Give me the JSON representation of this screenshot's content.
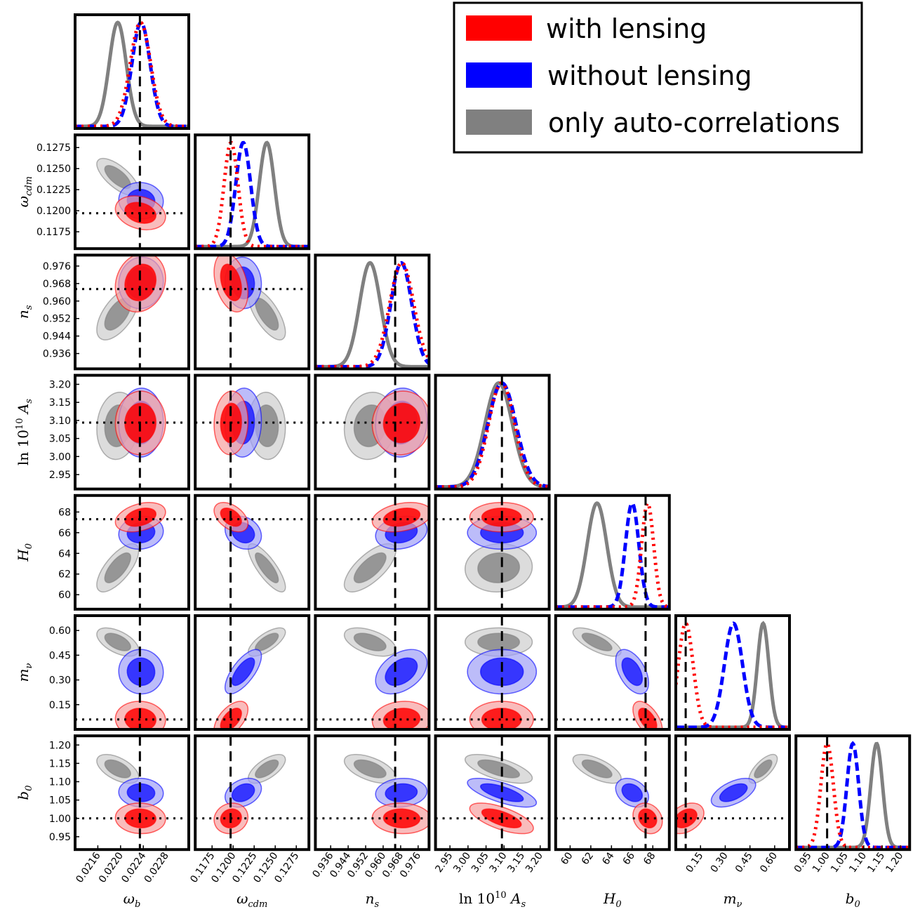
{
  "chart_data": {
    "type": "corner",
    "parameters": [
      {
        "key": "wb",
        "label": "ω",
        "sub": "b",
        "range": [
          0.0212,
          0.0232
        ],
        "ticks": [
          "0.0216",
          "0.0220",
          "0.0224",
          "0.0228"
        ],
        "tickvals": [
          0.0216,
          0.022,
          0.0224,
          0.0228
        ],
        "fiducial": 0.02234
      },
      {
        "key": "wcdm",
        "label": "ω",
        "sub": "cdm",
        "range": [
          0.1155,
          0.129
        ],
        "ticks": [
          "0.1175",
          "0.1200",
          "0.1225",
          "0.1250",
          "0.1275"
        ],
        "tickvals": [
          0.1175,
          0.12,
          0.1225,
          0.125,
          0.1275
        ],
        "fiducial": 0.1197
      },
      {
        "key": "ns",
        "label": "n",
        "sub": "s",
        "range": [
          0.929,
          0.981
        ],
        "ticks": [
          "0.936",
          "0.944",
          "0.952",
          "0.960",
          "0.968",
          "0.976"
        ],
        "tickvals": [
          0.936,
          0.944,
          0.952,
          0.96,
          0.968,
          0.976
        ],
        "fiducial": 0.9655
      },
      {
        "key": "lnAs",
        "label": "ln 10",
        "sup": "10",
        "sub": "s",
        "labelfull": "ln 10^10 A_s",
        "range": [
          2.91,
          3.225
        ],
        "ticks": [
          "2.95",
          "3.00",
          "3.05",
          "3.10",
          "3.15",
          "3.20"
        ],
        "tickvals": [
          2.95,
          3.0,
          3.05,
          3.1,
          3.15,
          3.2
        ],
        "fiducial": 3.094
      },
      {
        "key": "H0",
        "label": "H",
        "sub": "0",
        "range": [
          58.6,
          69.6
        ],
        "ticks": [
          "60",
          "62",
          "64",
          "66",
          "68"
        ],
        "tickvals": [
          60,
          62,
          64,
          66,
          68
        ],
        "fiducial": 67.3
      },
      {
        "key": "mnu",
        "label": "m",
        "sub": "ν",
        "range": [
          0.0,
          0.69
        ],
        "ticks": [
          "0.15",
          "0.30",
          "0.45",
          "0.60"
        ],
        "tickvals": [
          0.15,
          0.3,
          0.45,
          0.6
        ],
        "fiducial": 0.06
      },
      {
        "key": "b0",
        "label": "b",
        "sub": "0",
        "range": [
          0.915,
          1.225
        ],
        "ticks": [
          "0.95",
          "1.00",
          "1.05",
          "1.10",
          "1.15",
          "1.20"
        ],
        "tickvals": [
          0.95,
          1.0,
          1.05,
          1.1,
          1.15,
          1.2
        ],
        "fiducial": 1.0
      }
    ],
    "series": [
      {
        "name": "with lensing",
        "color": "#ff0000",
        "fill_inner": "#ff0000",
        "fill_outer": "#f6a0a0",
        "line": "dotted",
        "mean": [
          0.02235,
          0.11975,
          0.9685,
          3.093,
          67.5,
          0.06,
          1.0
        ],
        "sigma": [
          0.00018,
          0.00082,
          0.0055,
          0.036,
          0.58,
          0.045,
          0.017
        ]
      },
      {
        "name": "without lensing",
        "color": "#0000ff",
        "fill_inner": "#1f1fff",
        "fill_outer": "#a0a0f6",
        "line": "dashed",
        "mean": [
          0.02236,
          0.1212,
          0.9683,
          3.094,
          66.0,
          0.35,
          1.07
        ],
        "sigma": [
          0.00016,
          0.00088,
          0.0048,
          0.039,
          0.65,
          0.055,
          0.016
        ]
      },
      {
        "name": "only auto-correlations",
        "color": "#808080",
        "fill_inner": "#8a8a8a",
        "fill_outer": "#cdcdcd",
        "line": "solid",
        "mean": [
          0.02195,
          0.124,
          0.954,
          3.085,
          62.6,
          0.53,
          1.135
        ],
        "sigma": [
          0.00015,
          0.0009,
          0.0048,
          0.038,
          0.95,
          0.035,
          0.016
        ]
      }
    ],
    "legend": {
      "position": "top-right",
      "entries": [
        "with lensing",
        "without lensing",
        "only auto-correlations"
      ]
    },
    "grid": false
  }
}
